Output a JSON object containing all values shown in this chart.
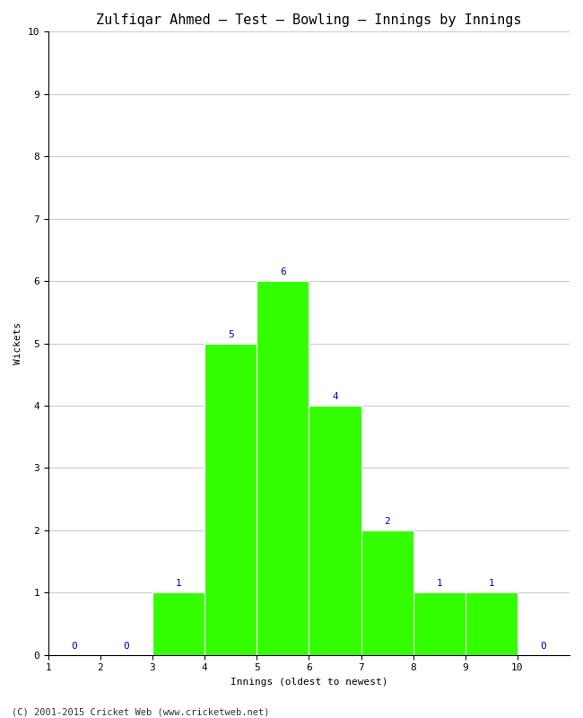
{
  "title": "Zulfiqar Ahmed – Test – Bowling – Innings by Innings",
  "xlabel": "Innings (oldest to newest)",
  "ylabel": "Wickets",
  "categories": [
    1,
    2,
    3,
    4,
    5,
    6,
    7,
    8,
    9,
    10
  ],
  "values": [
    0,
    0,
    1,
    5,
    6,
    4,
    2,
    1,
    1,
    0
  ],
  "bar_color": "#33ff00",
  "bar_edge_color": "#ffffff",
  "xlim": [
    1,
    10
  ],
  "ylim": [
    0,
    10
  ],
  "yticks": [
    0,
    1,
    2,
    3,
    4,
    5,
    6,
    7,
    8,
    9,
    10
  ],
  "xticks": [
    1,
    2,
    3,
    4,
    5,
    6,
    7,
    8,
    9,
    10
  ],
  "annotation_color": "#0000cc",
  "annotation_fontsize": 8,
  "title_fontsize": 11,
  "axis_label_fontsize": 8,
  "tick_fontsize": 8,
  "footer": "(C) 2001-2015 Cricket Web (www.cricketweb.net)",
  "footer_fontsize": 7.5,
  "background_color": "#ffffff",
  "grid_color": "#cccccc",
  "figwidth": 6.5,
  "figheight": 8.0,
  "fig_dpi": 100
}
